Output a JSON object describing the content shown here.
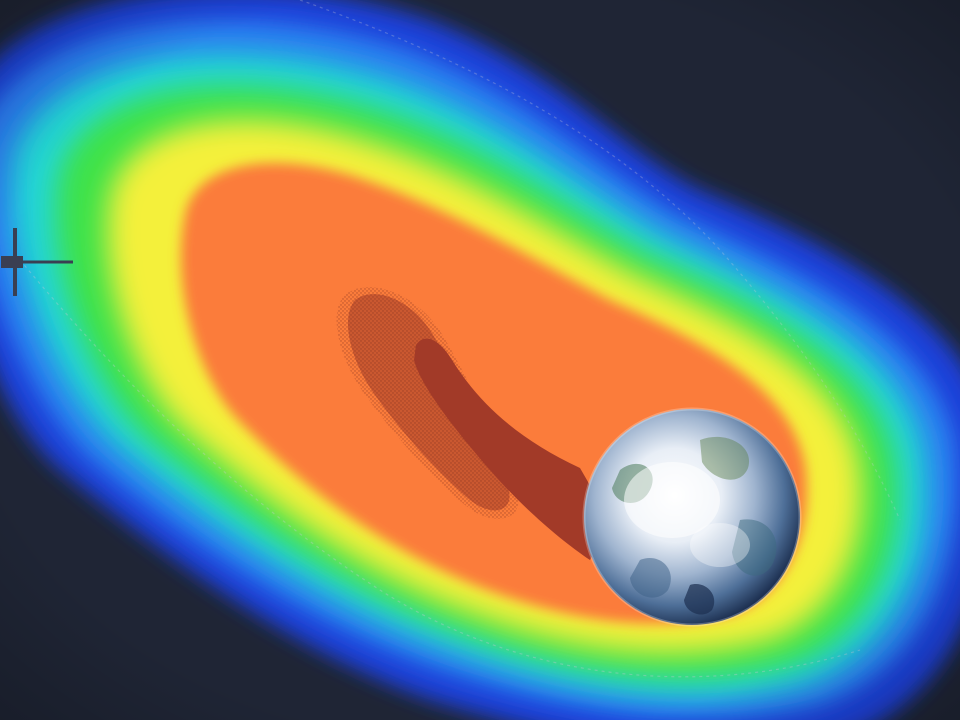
{
  "scene": {
    "kind": "radiation-belt-visualization",
    "background_color": "#1f2535",
    "palette": {
      "deep_blue": "#1e3fd8",
      "blue": "#2a7cf0",
      "cyan": "#22d6d6",
      "green": "#3ce24a",
      "yellow": "#f4f03a",
      "orange": "#fb7c3a",
      "dark_red": "#a23a28"
    },
    "elements": [
      "radiation-belt",
      "earth-globe",
      "earth-shadow-tail",
      "spacecraft",
      "orbit-path"
    ]
  }
}
